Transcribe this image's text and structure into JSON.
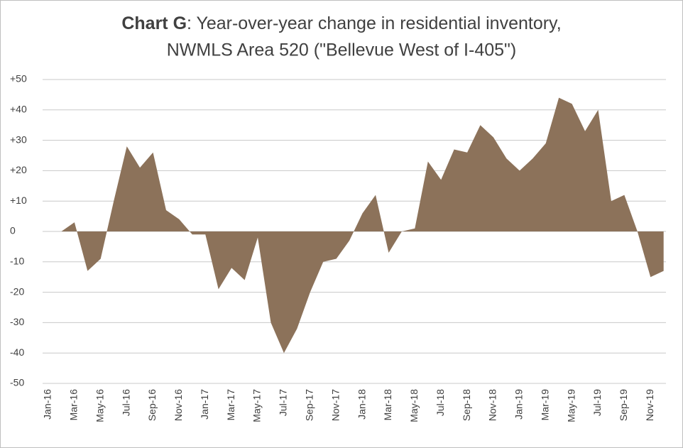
{
  "chart_data": {
    "type": "area",
    "title_bold": "Chart G",
    "title": ": Year-over-year change in residential inventory,",
    "subtitle": "NWMLS Area 520 (\"Bellevue West of I-405\")",
    "categories": [
      "Jan-16",
      null,
      "Mar-16",
      null,
      "May-16",
      null,
      "Jul-16",
      null,
      "Sep-16",
      null,
      "Nov-16",
      null,
      "Jan-17",
      null,
      "Mar-17",
      null,
      "May-17",
      null,
      "Jul-17",
      null,
      "Sep-17",
      null,
      "Nov-17",
      null,
      "Jan-18",
      null,
      "Mar-18",
      null,
      "May-18",
      null,
      "Jul-18",
      null,
      "Sep-18",
      null,
      "Nov-18",
      null,
      "Jan-19",
      null,
      "Mar-19",
      null,
      "May-19",
      null,
      "Jul-19",
      null,
      "Sep-19",
      null,
      "Nov-19",
      null
    ],
    "values": [
      0,
      0,
      3,
      -13,
      -9,
      10,
      28,
      21,
      26,
      7,
      4,
      -1,
      -1,
      -19,
      -12,
      -16,
      -2,
      -30,
      -40,
      -32,
      -20,
      -10,
      -9,
      -3,
      6,
      12,
      -7,
      0,
      1,
      23,
      17,
      27,
      26,
      35,
      31,
      24,
      20,
      24,
      29,
      44,
      42,
      33,
      40,
      10,
      12,
      0,
      -15,
      -13
    ],
    "color": "#8c725a",
    "negative_tick_color": "#c00000",
    "ylim": [
      -50,
      50
    ],
    "yticks": [
      {
        "value": 50,
        "label": "+50"
      },
      {
        "value": 40,
        "label": "+40"
      },
      {
        "value": 30,
        "label": "+30"
      },
      {
        "value": 20,
        "label": "+20"
      },
      {
        "value": 10,
        "label": "+10"
      },
      0,
      -10,
      -20,
      -30,
      -40,
      -50
    ],
    "grid": true
  }
}
